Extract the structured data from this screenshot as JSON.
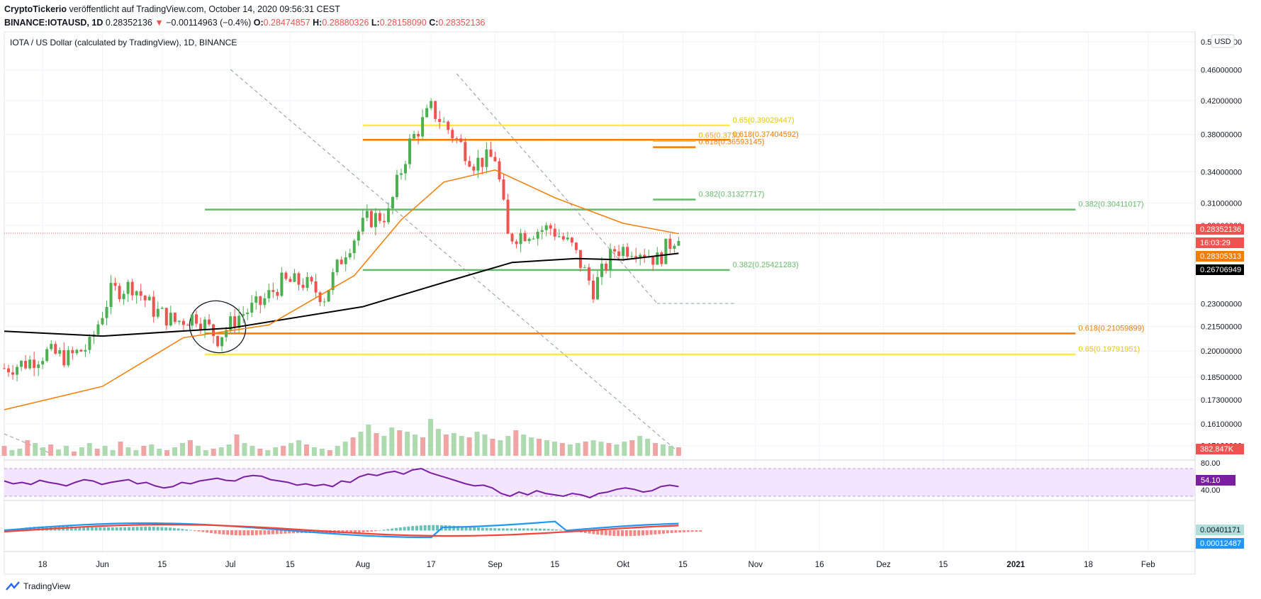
{
  "header": {
    "publisher": "CryptoTickerio",
    "published_text": "veröffentlicht auf TradingView.com, October 14, 2020 09:56:31 CEST",
    "symbol": "BINANCE:IOTAUSD, 1D",
    "last": "0.28352136",
    "arrow": "▼",
    "change": "−0.00114963 (−0.4%)",
    "o_label": "O:",
    "o": "0.28474857",
    "h_label": "H:",
    "h": "0.28880326",
    "l_label": "L:",
    "l": "0.28158090",
    "c_label": "C:",
    "c": "0.28352136"
  },
  "footer": {
    "brand": "TradingView"
  },
  "chart_data": {
    "type": "candlestick",
    "title": "IOTA / US Dollar (calculated by TradingView), 1D, BINANCE",
    "currency": "USD",
    "y_scale": "log",
    "y_ticks": [
      "0.50000000",
      "0.46000000",
      "0.42000000",
      "0.38000000",
      "0.34000000",
      "0.31000000",
      "0.29000000",
      "0.23000000",
      "0.21500000",
      "0.20000000",
      "0.18500000",
      "0.17300000",
      "0.16100000",
      "0.15100000"
    ],
    "x_ticks": [
      "18",
      "Jun",
      "15",
      "Jul",
      "15",
      "Aug",
      "17",
      "Sep",
      "15",
      "Okt",
      "15",
      "Nov",
      "16",
      "Dez",
      "15",
      "2021",
      "18",
      "Feb"
    ],
    "x_range": [
      "2020-05-09",
      "2021-02-12"
    ],
    "y_range": [
      0.145,
      0.515
    ],
    "price_labels": [
      {
        "value": "0.28352136",
        "color": "#ef5350"
      },
      {
        "value": "16:03:29",
        "color": "#ef5350"
      },
      {
        "value": "0.28305313",
        "color": "#f57c00"
      },
      {
        "value": "0.26706949",
        "color": "#000000"
      },
      {
        "value": "382.847K",
        "color": "#ef5350"
      }
    ],
    "fib_levels": [
      {
        "label": "0.65(0.39029447)",
        "value": 0.3903,
        "color": "#ffeb3b",
        "from": "2020-08-01",
        "to": "2020-10-26"
      },
      {
        "label": "0.618(0.37404592)",
        "value": 0.374,
        "color": "#f57c00",
        "from": "2020-08-01",
        "to": "2020-10-26"
      },
      {
        "label": "0.65(0.3730",
        "value": 0.373,
        "color": "#f5a623",
        "from": "2020-10-08",
        "to": "2020-10-18"
      },
      {
        "label": "0.618(0.36593145)",
        "value": 0.3659,
        "color": "#f57c00",
        "from": "2020-10-08",
        "to": "2020-10-18"
      },
      {
        "label": "0.382(0.31327717)",
        "value": 0.3133,
        "color": "#66bb6a",
        "from": "2020-10-08",
        "to": "2020-10-18"
      },
      {
        "label": "0.382(0.30411017)",
        "value": 0.3041,
        "color": "#66bb6a",
        "from": "2020-06-25",
        "to": "2021-01-15"
      },
      {
        "label": "0.382(0.25421283)",
        "value": 0.2542,
        "color": "#66bb6a",
        "from": "2020-08-01",
        "to": "2020-10-26"
      },
      {
        "label": "0.618(0.21059899)",
        "value": 0.2106,
        "color": "#f57c00",
        "from": "2020-06-25",
        "to": "2021-01-15"
      },
      {
        "label": "0.65(0.19791951)",
        "value": 0.1979,
        "color": "#ffeb3b",
        "from": "2020-06-25",
        "to": "2021-01-15"
      }
    ],
    "price_path": [
      [
        "2020-05-09",
        0.19
      ],
      [
        "2020-05-14",
        0.193
      ],
      [
        "2020-05-19",
        0.199
      ],
      [
        "2020-05-24",
        0.196
      ],
      [
        "2020-05-29",
        0.203
      ],
      [
        "2020-06-03",
        0.238
      ],
      [
        "2020-06-08",
        0.243
      ],
      [
        "2020-06-13",
        0.226
      ],
      [
        "2020-06-18",
        0.218
      ],
      [
        "2020-06-23",
        0.222
      ],
      [
        "2020-06-28",
        0.208
      ],
      [
        "2020-07-03",
        0.222
      ],
      [
        "2020-07-08",
        0.23
      ],
      [
        "2020-07-13",
        0.245
      ],
      [
        "2020-07-18",
        0.245
      ],
      [
        "2020-07-23",
        0.235
      ],
      [
        "2020-07-28",
        0.27
      ],
      [
        "2020-08-02",
        0.295
      ],
      [
        "2020-08-07",
        0.3
      ],
      [
        "2020-08-12",
        0.37
      ],
      [
        "2020-08-17",
        0.41
      ],
      [
        "2020-08-22",
        0.38
      ],
      [
        "2020-08-27",
        0.35
      ],
      [
        "2020-09-01",
        0.355
      ],
      [
        "2020-09-04",
        0.28
      ],
      [
        "2020-09-09",
        0.285
      ],
      [
        "2020-09-14",
        0.288
      ],
      [
        "2020-09-19",
        0.272
      ],
      [
        "2020-09-24",
        0.24
      ],
      [
        "2020-09-29",
        0.27
      ],
      [
        "2020-10-04",
        0.272
      ],
      [
        "2020-10-09",
        0.262
      ],
      [
        "2020-10-14",
        0.284
      ]
    ],
    "sma200_path": [
      [
        "2020-05-09",
        0.212
      ],
      [
        "2020-06-01",
        0.209
      ],
      [
        "2020-07-01",
        0.214
      ],
      [
        "2020-08-01",
        0.228
      ],
      [
        "2020-08-20",
        0.245
      ],
      [
        "2020-09-05",
        0.26
      ],
      [
        "2020-09-20",
        0.263
      ],
      [
        "2020-10-01",
        0.262
      ],
      [
        "2020-10-14",
        0.2671
      ]
    ],
    "ma50_path": [
      [
        "2020-05-09",
        0.168
      ],
      [
        "2020-06-01",
        0.18
      ],
      [
        "2020-06-20",
        0.208
      ],
      [
        "2020-07-10",
        0.216
      ],
      [
        "2020-07-30",
        0.25
      ],
      [
        "2020-08-10",
        0.295
      ],
      [
        "2020-08-20",
        0.33
      ],
      [
        "2020-09-01",
        0.342
      ],
      [
        "2020-09-15",
        0.315
      ],
      [
        "2020-10-01",
        0.292
      ],
      [
        "2020-10-14",
        0.2831
      ]
    ],
    "volume_heights": [
      14,
      8,
      10,
      22,
      18,
      12,
      16,
      9,
      14,
      6,
      12,
      18,
      10,
      14,
      8,
      20,
      12,
      8,
      14,
      16,
      10,
      8,
      12,
      18,
      22,
      14,
      8,
      10,
      12,
      16,
      30,
      18,
      14,
      10,
      8,
      12,
      14,
      18,
      22,
      16,
      12,
      10,
      8,
      14,
      20,
      26,
      34,
      44,
      32,
      28,
      40,
      36,
      34,
      30,
      26,
      52,
      38,
      30,
      32,
      28,
      26,
      34,
      30,
      24,
      22,
      28,
      36,
      30,
      26,
      24,
      22,
      20,
      18,
      16,
      18,
      20,
      22,
      20,
      18,
      16,
      20,
      22,
      28,
      24,
      18,
      16,
      14,
      12
    ],
    "rsi": {
      "value": "54.10",
      "levels": [
        "80.00",
        "40.00"
      ],
      "path": [
        62,
        58,
        60,
        57,
        63,
        60,
        58,
        55,
        60,
        64,
        62,
        57,
        60,
        62,
        64,
        58,
        60,
        55,
        52,
        54,
        60,
        58,
        62,
        64,
        66,
        63,
        62,
        68,
        70,
        69,
        64,
        62,
        60,
        56,
        58,
        55,
        57,
        54,
        62,
        60,
        68,
        72,
        70,
        74,
        76,
        72,
        78,
        80,
        74,
        70,
        66,
        62,
        58,
        55,
        56,
        52,
        44,
        40,
        46,
        42,
        48,
        44,
        42,
        40,
        44,
        42,
        38,
        44,
        46,
        50,
        52,
        50,
        46,
        48,
        54,
        56,
        54
      ]
    },
    "macd": {
      "values": [
        "0.00401171",
        "0.00012487"
      ]
    }
  }
}
